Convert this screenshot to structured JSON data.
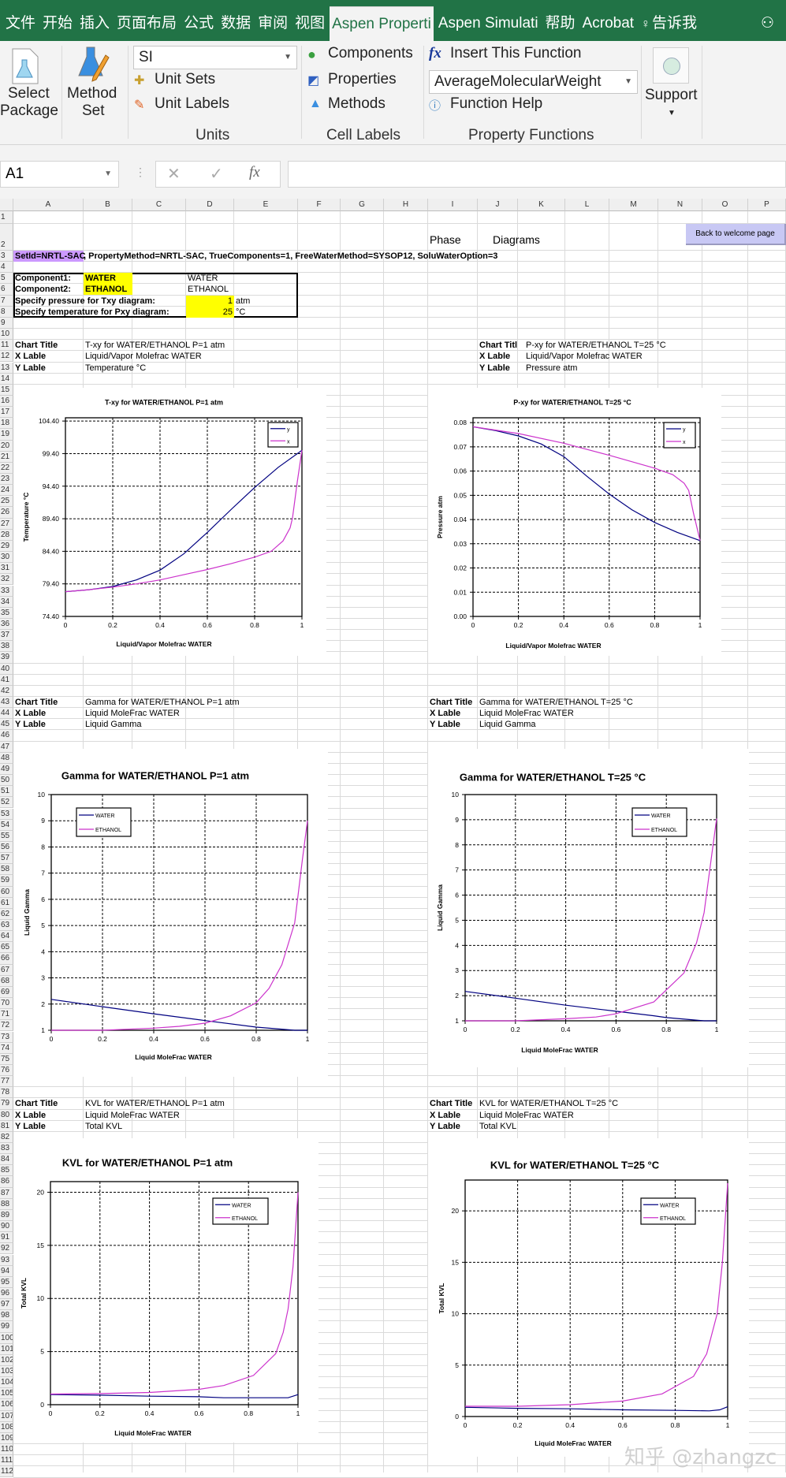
{
  "tabs": [
    {
      "label": "文件"
    },
    {
      "label": "开始"
    },
    {
      "label": "插入"
    },
    {
      "label": "页面布局"
    },
    {
      "label": "公式"
    },
    {
      "label": "数据"
    },
    {
      "label": "审阅"
    },
    {
      "label": "视图"
    },
    {
      "label": "Aspen Properti",
      "active": true
    },
    {
      "label": "Aspen Simulati"
    },
    {
      "label": "帮助"
    },
    {
      "label": "Acrobat"
    },
    {
      "label": "告诉我",
      "icon": "lightbulb-icon"
    }
  ],
  "ribbon": {
    "select_package": [
      "Select",
      "Package"
    ],
    "method_set": [
      "Method",
      "Set"
    ],
    "unit_set_value": "SI",
    "unit_sets": "Unit Sets",
    "unit_labels": "Unit Labels",
    "units_group": "Units",
    "components": "Components",
    "properties": "Properties",
    "methods": "Methods",
    "cell_labels_group": "Cell Labels",
    "insert_function": "Insert This Function",
    "function_value": "AverageMolecularWeight",
    "function_help": "Function Help",
    "property_functions_group": "Property Functions",
    "support": "Support"
  },
  "formula_bar": {
    "name_box": "A1",
    "cancel": "✕",
    "enter": "✓",
    "fx": "fx",
    "value": ""
  },
  "columns": [
    "A",
    "B",
    "C",
    "D",
    "E",
    "F",
    "G",
    "H",
    "I",
    "J",
    "K",
    "L",
    "M",
    "N",
    "O",
    "P"
  ],
  "rows": [
    "1",
    "2",
    "3",
    "4",
    "5",
    "6",
    "7",
    "8",
    "9",
    "10",
    "11",
    "12",
    "13",
    "14",
    "15",
    "16",
    "17",
    "18",
    "19",
    "20",
    "21",
    "22",
    "23",
    "24",
    "25",
    "26",
    "27",
    "28",
    "29",
    "30",
    "31",
    "32",
    "33",
    "34",
    "35",
    "36",
    "37",
    "38",
    "39",
    "40",
    "41",
    "42",
    "43",
    "44",
    "45",
    "46",
    "47",
    "48",
    "49",
    "50",
    "51",
    "52",
    "53",
    "54",
    "55",
    "56",
    "57",
    "58",
    "59",
    "60",
    "61",
    "62",
    "63",
    "64",
    "65",
    "66",
    "67",
    "68",
    "69",
    "70",
    "71",
    "72",
    "73",
    "74",
    "75",
    "76",
    "77",
    "78",
    "79",
    "80",
    "81",
    "82",
    "83",
    "84",
    "85",
    "86",
    "87",
    "88",
    "89",
    "90",
    "91",
    "92",
    "93",
    "94",
    "95",
    "96",
    "97",
    "98",
    "99",
    "100",
    "101",
    "102",
    "103",
    "104",
    "105",
    "106",
    "107",
    "108",
    "109",
    "110",
    "111",
    "112"
  ],
  "sheet": {
    "phase": "Phase",
    "diagrams": "Diagrams",
    "back_button": "Back to welcome page",
    "setid": "SetId=NRTL-SAC",
    "settings": ", PropertyMethod=NRTL-SAC, TrueComponents=1, FreeWaterMethod=SYSOP12, SoluWaterOption=3",
    "component1_label": "Component1:",
    "component1": "WATER",
    "component1_name": "WATER",
    "component2_label": "Component2:",
    "component2": "ETHANOL",
    "component2_name": "ETHANOL",
    "pressure_label": "Specify pressure for Txy diagram:",
    "pressure": "1",
    "pressure_unit": "atm",
    "temperature_label": "Specify temperature for Pxy diagram:",
    "temperature": "25",
    "temperature_unit": "°C",
    "chart_title_label": "Chart Title",
    "chart_title_label_clipped": "Chart Titl",
    "x_label_label": "X Lable",
    "y_label_label": "Y Lable",
    "txy": {
      "title": "T-xy for WATER/ETHANOL   P=1 atm",
      "x": "Liquid/Vapor Molefrac WATER",
      "y": "Temperature °C"
    },
    "pxy": {
      "title": "P-xy for WATER/ETHANOL   T=25 °C",
      "x": "Liquid/Vapor Molefrac WATER",
      "y": "Pressure atm"
    },
    "gamma_p": {
      "title": "Gamma for WATER/ETHANOL     P=1 atm",
      "x": "Liquid MoleFrac WATER",
      "y": "Liquid Gamma"
    },
    "gamma_t": {
      "title": "Gamma for WATER/ETHANOL     T=25 °C",
      "x": "Liquid MoleFrac WATER",
      "y": "Liquid Gamma"
    },
    "kvl_p": {
      "title": "KVL for WATER/ETHANOL     P=1 atm",
      "x": "Liquid MoleFrac WATER",
      "y": "Total KVL"
    },
    "kvl_t": {
      "title": "KVL for WATER/ETHANOL     T=25 °C",
      "x": "Liquid MoleFrac WATER",
      "y": "Total KVL"
    }
  },
  "colors": {
    "ribbon_green": "#217346",
    "series_dark": "#000080",
    "series_magenta": "#cc33cc",
    "highlight_yellow": "#ffff00",
    "setid_purple": "#cc99ff",
    "button_lavender": "#c8c8f4"
  },
  "watermark": "知乎 @zhangzc",
  "chart_data": [
    {
      "type": "line",
      "title": "T-xy for WATER/ETHANOL   P=1 atm",
      "xlabel": "Liquid/Vapor Molefrac WATER",
      "ylabel": "Temperature °C",
      "xlim": [
        0,
        1
      ],
      "ylim": [
        74.4,
        104.9
      ],
      "x_ticks": [
        "0",
        "0.2",
        "0.4",
        "0.6",
        "0.8",
        "1"
      ],
      "y_ticks": [
        "74.40",
        "79.40",
        "84.40",
        "89.40",
        "94.40",
        "99.40",
        "104.40"
      ],
      "grid": true,
      "legend": "top-right",
      "series": [
        {
          "name": "y",
          "color": "#000080",
          "x": [
            0,
            0.1,
            0.2,
            0.3,
            0.4,
            0.5,
            0.6,
            0.7,
            0.8,
            0.9,
            1.0
          ],
          "y": [
            78.2,
            78.5,
            79.0,
            80.0,
            81.5,
            84.0,
            87.3,
            90.8,
            94.2,
            97.3,
            99.9
          ]
        },
        {
          "name": "x",
          "color": "#cc33cc",
          "x": [
            0,
            0.1,
            0.2,
            0.3,
            0.4,
            0.5,
            0.6,
            0.7,
            0.8,
            0.87,
            0.92,
            0.95,
            0.96,
            0.98,
            1.0
          ],
          "y": [
            78.2,
            78.5,
            78.9,
            79.4,
            80.0,
            80.8,
            81.6,
            82.5,
            83.5,
            84.4,
            86.0,
            88.0,
            89.5,
            95.0,
            99.9
          ]
        }
      ]
    },
    {
      "type": "line",
      "title": "P-xy for WATER/ETHANOL   T=25 °C",
      "xlabel": "Liquid/Vapor Molefrac WATER",
      "ylabel": "Pressure atm",
      "xlim": [
        0,
        1
      ],
      "ylim": [
        0,
        0.082
      ],
      "x_ticks": [
        "0",
        "0.2",
        "0.4",
        "0.6",
        "0.8",
        "1"
      ],
      "y_ticks": [
        "0.00",
        "0.01",
        "0.02",
        "0.03",
        "0.04",
        "0.05",
        "0.06",
        "0.07",
        "0.08"
      ],
      "grid": true,
      "legend": "top-right",
      "series": [
        {
          "name": "y",
          "color": "#000080",
          "x": [
            0,
            0.1,
            0.2,
            0.3,
            0.4,
            0.5,
            0.6,
            0.7,
            0.8,
            0.9,
            1.0
          ],
          "y": [
            0.0783,
            0.0767,
            0.0745,
            0.0712,
            0.066,
            0.058,
            0.0505,
            0.044,
            0.0388,
            0.0347,
            0.0313
          ]
        },
        {
          "name": "x",
          "color": "#cc33cc",
          "x": [
            0,
            0.2,
            0.4,
            0.6,
            0.8,
            0.88,
            0.93,
            0.95,
            0.97,
            1.0
          ],
          "y": [
            0.0783,
            0.0755,
            0.0715,
            0.0665,
            0.0612,
            0.0585,
            0.055,
            0.052,
            0.043,
            0.0313
          ]
        }
      ]
    },
    {
      "type": "line",
      "title": "Gamma for WATER/ETHANOL     P=1 atm",
      "xlabel": "Liquid MoleFrac WATER",
      "ylabel": "Liquid Gamma",
      "xlim": [
        0,
        1
      ],
      "ylim": [
        1,
        10
      ],
      "x_ticks": [
        "0",
        "0.2",
        "0.4",
        "0.6",
        "0.8",
        "1"
      ],
      "y_ticks": [
        "1",
        "2",
        "3",
        "4",
        "5",
        "6",
        "7",
        "8",
        "9",
        "10"
      ],
      "grid": true,
      "legend": "top-left",
      "series": [
        {
          "name": "WATER",
          "color": "#000080",
          "x": [
            0,
            0.2,
            0.4,
            0.6,
            0.8,
            0.95,
            1.0
          ],
          "y": [
            2.18,
            1.9,
            1.63,
            1.37,
            1.12,
            1.0,
            1.0
          ]
        },
        {
          "name": "ETHANOL",
          "color": "#cc33cc",
          "x": [
            0,
            0.2,
            0.4,
            0.5,
            0.6,
            0.7,
            0.8,
            0.85,
            0.9,
            0.95,
            0.98,
            1.0
          ],
          "y": [
            1.0,
            1.0,
            1.08,
            1.15,
            1.27,
            1.55,
            2.05,
            2.6,
            3.5,
            5.1,
            7.5,
            9.0
          ]
        }
      ]
    },
    {
      "type": "line",
      "title": "Gamma for WATER/ETHANOL     T=25 °C",
      "xlabel": "Liquid MoleFrac WATER",
      "ylabel": "Liquid Gamma",
      "xlim": [
        0,
        1
      ],
      "ylim": [
        1,
        10
      ],
      "x_ticks": [
        "0",
        "0.2",
        "0.4",
        "0.6",
        "0.8",
        "1"
      ],
      "y_ticks": [
        "1",
        "2",
        "3",
        "4",
        "5",
        "6",
        "7",
        "8",
        "9",
        "10"
      ],
      "grid": true,
      "legend": "top-right",
      "series": [
        {
          "name": "WATER",
          "color": "#000080",
          "x": [
            0,
            0.2,
            0.4,
            0.6,
            0.75,
            0.8,
            0.95,
            1.0
          ],
          "y": [
            2.17,
            1.9,
            1.62,
            1.38,
            1.2,
            1.13,
            1.0,
            1.0
          ]
        },
        {
          "name": "ETHANOL",
          "color": "#cc33cc",
          "x": [
            0,
            0.2,
            0.4,
            0.52,
            0.6,
            0.75,
            0.87,
            0.92,
            0.95,
            0.97,
            1.0
          ],
          "y": [
            1.0,
            1.0,
            1.08,
            1.15,
            1.28,
            1.75,
            2.9,
            4.1,
            5.3,
            6.8,
            9.05
          ]
        }
      ]
    },
    {
      "type": "line",
      "title": "KVL for WATER/ETHANOL     P=1 atm",
      "xlabel": "Liquid MoleFrac WATER",
      "ylabel": "Total KVL",
      "xlim": [
        0,
        1
      ],
      "ylim": [
        0,
        21
      ],
      "x_ticks": [
        "0",
        "0.2",
        "0.4",
        "0.6",
        "0.8",
        "1"
      ],
      "y_ticks": [
        "0",
        "5",
        "10",
        "15",
        "20"
      ],
      "grid": true,
      "legend": "top-right",
      "series": [
        {
          "name": "WATER",
          "color": "#000080",
          "x": [
            0,
            0.2,
            0.4,
            0.6,
            0.7,
            0.96,
            1.0
          ],
          "y": [
            0.95,
            0.9,
            0.8,
            0.75,
            0.65,
            0.65,
            0.95
          ]
        },
        {
          "name": "ETHANOL",
          "color": "#cc33cc",
          "x": [
            0,
            0.2,
            0.4,
            0.6,
            0.7,
            0.82,
            0.91,
            0.94,
            0.96,
            0.98,
            1.0
          ],
          "y": [
            1.0,
            1.05,
            1.15,
            1.45,
            1.8,
            2.75,
            4.8,
            6.8,
            9.0,
            13.0,
            20.0
          ]
        }
      ]
    },
    {
      "type": "line",
      "title": "KVL for WATER/ETHANOL     T=25 °C",
      "xlabel": "Liquid MoleFrac WATER",
      "ylabel": "Total KVL",
      "xlim": [
        0,
        1
      ],
      "ylim": [
        0,
        23
      ],
      "x_ticks": [
        "0",
        "0.2",
        "0.4",
        "0.6",
        "0.8",
        "1"
      ],
      "y_ticks": [
        "0",
        "5",
        "10",
        "15",
        "20"
      ],
      "grid": true,
      "legend": "top-right",
      "series": [
        {
          "name": "WATER",
          "color": "#000080",
          "x": [
            0,
            0.2,
            0.4,
            0.6,
            0.8,
            0.93,
            0.97,
            1.0
          ],
          "y": [
            0.9,
            0.8,
            0.75,
            0.65,
            0.6,
            0.55,
            0.65,
            0.95
          ]
        },
        {
          "name": "ETHANOL",
          "color": "#cc33cc",
          "x": [
            0,
            0.2,
            0.4,
            0.6,
            0.75,
            0.87,
            0.92,
            0.96,
            0.98,
            1.0
          ],
          "y": [
            1.0,
            1.0,
            1.15,
            1.5,
            2.2,
            3.9,
            6.1,
            10.0,
            15.0,
            22.7
          ]
        }
      ]
    }
  ]
}
